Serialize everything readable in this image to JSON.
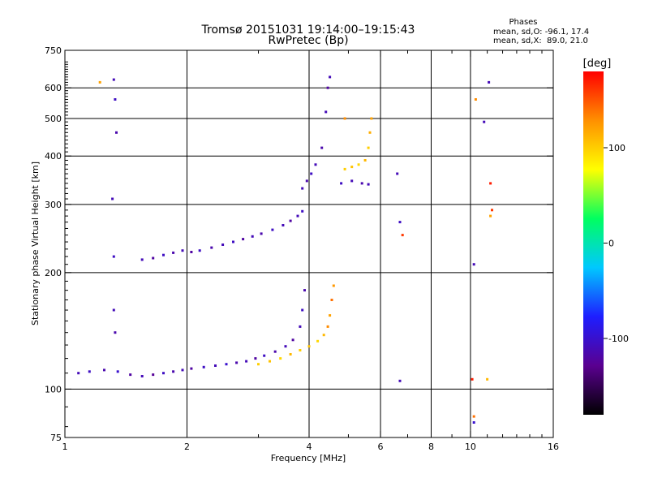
{
  "chart_data": {
    "type": "scatter",
    "title": "Tromsø 20151031 19:14:00–19:15:43",
    "subtitle": "RwPretec (Bp)",
    "xlabel": "Frequency [MHz]",
    "ylabel": "Stationary phase Virtual Height [km]",
    "x_scale": "log",
    "y_scale": "log",
    "xlim": [
      1,
      16
    ],
    "ylim": [
      75,
      750
    ],
    "x_ticks": [
      1,
      2,
      4,
      6,
      8,
      10,
      16
    ],
    "x_gridlines": [
      2,
      4,
      6,
      8,
      10
    ],
    "x_minor_ticks": [
      3,
      5,
      7,
      9,
      11,
      12,
      13,
      14,
      15
    ],
    "y_ticks": [
      75,
      100,
      200,
      300,
      400,
      500,
      600,
      750
    ],
    "y_gridlines": [
      100,
      200,
      300,
      400,
      500,
      600
    ],
    "grid": true,
    "phases_header": "Phases",
    "phases_line1": "mean, sd,O: -96.1, 17.4",
    "phases_line2": "mean, sd,X:  89.0, 21.0",
    "colorbar": {
      "label": "[deg]",
      "ticks": [
        100,
        0,
        -100
      ],
      "range": [
        -180,
        180
      ],
      "colors": [
        "#000000",
        "#5a0090",
        "#1e1eff",
        "#00c8ff",
        "#00ff60",
        "#ffff00",
        "#ff9000",
        "#ff0000"
      ]
    },
    "series": [
      {
        "values": [
          {
            "x": 1.08,
            "y": 110,
            "phase": -110
          },
          {
            "x": 1.15,
            "y": 111,
            "phase": -105
          },
          {
            "x": 1.25,
            "y": 112,
            "phase": -115
          },
          {
            "x": 1.35,
            "y": 111,
            "phase": -100
          },
          {
            "x": 1.45,
            "y": 109,
            "phase": -120
          },
          {
            "x": 1.55,
            "y": 108,
            "phase": -110
          },
          {
            "x": 1.65,
            "y": 109,
            "phase": -125
          },
          {
            "x": 1.75,
            "y": 110,
            "phase": -105
          },
          {
            "x": 1.85,
            "y": 111,
            "phase": -115
          },
          {
            "x": 1.95,
            "y": 112,
            "phase": -110
          },
          {
            "x": 2.05,
            "y": 113,
            "phase": -120
          },
          {
            "x": 2.2,
            "y": 114,
            "phase": -105
          },
          {
            "x": 2.35,
            "y": 115,
            "phase": -110
          },
          {
            "x": 2.5,
            "y": 116,
            "phase": -100
          },
          {
            "x": 2.65,
            "y": 117,
            "phase": -115
          },
          {
            "x": 2.8,
            "y": 118,
            "phase": -110
          },
          {
            "x": 2.95,
            "y": 120,
            "phase": -120
          },
          {
            "x": 3.1,
            "y": 122,
            "phase": -105
          },
          {
            "x": 3.3,
            "y": 125,
            "phase": -115
          },
          {
            "x": 3.5,
            "y": 129,
            "phase": -110
          },
          {
            "x": 3.65,
            "y": 134,
            "phase": -120
          },
          {
            "x": 3.8,
            "y": 145,
            "phase": -110
          },
          {
            "x": 3.85,
            "y": 160,
            "phase": -105
          },
          {
            "x": 3.9,
            "y": 180,
            "phase": -115
          }
        ]
      },
      {
        "values": [
          {
            "x": 3.0,
            "y": 116,
            "phase": 100
          },
          {
            "x": 3.2,
            "y": 118,
            "phase": 105
          },
          {
            "x": 3.4,
            "y": 120,
            "phase": 95
          },
          {
            "x": 3.6,
            "y": 123,
            "phase": 110
          },
          {
            "x": 3.8,
            "y": 126,
            "phase": 100
          },
          {
            "x": 4.0,
            "y": 129,
            "phase": 105
          },
          {
            "x": 4.2,
            "y": 133,
            "phase": 95
          },
          {
            "x": 4.35,
            "y": 138,
            "phase": 110
          },
          {
            "x": 4.45,
            "y": 145,
            "phase": 130
          },
          {
            "x": 4.5,
            "y": 155,
            "phase": 120
          },
          {
            "x": 4.55,
            "y": 170,
            "phase": 140
          },
          {
            "x": 4.6,
            "y": 185,
            "phase": 125
          }
        ]
      },
      {
        "values": [
          {
            "x": 1.55,
            "y": 216,
            "phase": -110
          },
          {
            "x": 1.65,
            "y": 218,
            "phase": -120
          },
          {
            "x": 1.75,
            "y": 222,
            "phase": -105
          },
          {
            "x": 1.85,
            "y": 225,
            "phase": -115
          },
          {
            "x": 1.95,
            "y": 228,
            "phase": -110
          },
          {
            "x": 2.05,
            "y": 226,
            "phase": -120
          },
          {
            "x": 2.15,
            "y": 228,
            "phase": -105
          },
          {
            "x": 2.3,
            "y": 232,
            "phase": -115
          },
          {
            "x": 2.45,
            "y": 236,
            "phase": -110
          },
          {
            "x": 2.6,
            "y": 240,
            "phase": -105
          },
          {
            "x": 2.75,
            "y": 244,
            "phase": -120
          },
          {
            "x": 2.9,
            "y": 248,
            "phase": -110
          },
          {
            "x": 3.05,
            "y": 252,
            "phase": -115
          },
          {
            "x": 3.25,
            "y": 258,
            "phase": -105
          },
          {
            "x": 3.45,
            "y": 265,
            "phase": -110
          },
          {
            "x": 3.6,
            "y": 272,
            "phase": -120
          },
          {
            "x": 3.75,
            "y": 280,
            "phase": -110
          },
          {
            "x": 3.85,
            "y": 288,
            "phase": -105
          }
        ]
      },
      {
        "values": [
          {
            "x": 3.85,
            "y": 330,
            "phase": -110
          },
          {
            "x": 3.95,
            "y": 345,
            "phase": -115
          },
          {
            "x": 4.05,
            "y": 360,
            "phase": -105
          },
          {
            "x": 4.15,
            "y": 380,
            "phase": -110
          },
          {
            "x": 4.3,
            "y": 420,
            "phase": -115
          },
          {
            "x": 4.4,
            "y": 520,
            "phase": -110
          },
          {
            "x": 4.45,
            "y": 600,
            "phase": -120
          },
          {
            "x": 4.5,
            "y": 640,
            "phase": -110
          },
          {
            "x": 4.8,
            "y": 340,
            "phase": -105
          },
          {
            "x": 5.1,
            "y": 345,
            "phase": -110
          },
          {
            "x": 5.4,
            "y": 340,
            "phase": -115
          },
          {
            "x": 5.6,
            "y": 338,
            "phase": -110
          }
        ]
      },
      {
        "values": [
          {
            "x": 4.9,
            "y": 370,
            "phase": 100
          },
          {
            "x": 5.1,
            "y": 375,
            "phase": 105
          },
          {
            "x": 5.3,
            "y": 380,
            "phase": 95
          },
          {
            "x": 5.5,
            "y": 390,
            "phase": 110
          },
          {
            "x": 5.6,
            "y": 420,
            "phase": 100
          },
          {
            "x": 5.65,
            "y": 460,
            "phase": 115
          },
          {
            "x": 5.7,
            "y": 500,
            "phase": 120
          },
          {
            "x": 4.9,
            "y": 500,
            "phase": 130
          }
        ]
      },
      {
        "values": [
          {
            "x": 1.32,
            "y": 630,
            "phase": -110
          },
          {
            "x": 1.33,
            "y": 560,
            "phase": -105
          },
          {
            "x": 1.34,
            "y": 460,
            "phase": -115
          },
          {
            "x": 1.31,
            "y": 310,
            "phase": -110
          },
          {
            "x": 1.32,
            "y": 220,
            "phase": -105
          },
          {
            "x": 1.32,
            "y": 160,
            "phase": -110
          },
          {
            "x": 1.33,
            "y": 140,
            "phase": -115
          },
          {
            "x": 1.22,
            "y": 620,
            "phase": 120
          },
          {
            "x": 6.6,
            "y": 360,
            "phase": -110
          },
          {
            "x": 6.7,
            "y": 270,
            "phase": -105
          },
          {
            "x": 6.8,
            "y": 250,
            "phase": 160
          },
          {
            "x": 6.7,
            "y": 105,
            "phase": -110
          },
          {
            "x": 10.2,
            "y": 85,
            "phase": 140
          },
          {
            "x": 10.2,
            "y": 82,
            "phase": -100
          },
          {
            "x": 11.1,
            "y": 620,
            "phase": -110
          },
          {
            "x": 11.2,
            "y": 340,
            "phase": 170
          },
          {
            "x": 11.3,
            "y": 290,
            "phase": 160
          },
          {
            "x": 11.2,
            "y": 280,
            "phase": 120
          },
          {
            "x": 10.8,
            "y": 490,
            "phase": -110
          },
          {
            "x": 10.3,
            "y": 560,
            "phase": 130
          },
          {
            "x": 10.2,
            "y": 210,
            "phase": -110
          },
          {
            "x": 10.1,
            "y": 106,
            "phase": 170
          },
          {
            "x": 11.0,
            "y": 106,
            "phase": 110
          }
        ]
      }
    ]
  }
}
